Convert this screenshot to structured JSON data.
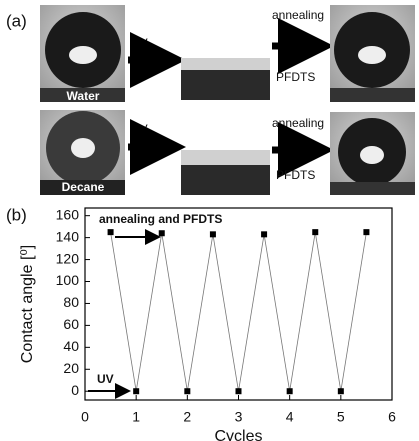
{
  "panel_a": {
    "label": "(a)",
    "row1": {
      "arrow1": "UV",
      "arrow2_top": "annealing",
      "arrow2_bottom": "PFDTS",
      "liquid": "Water"
    },
    "row2": {
      "arrow1": "UV",
      "arrow2_top": "annealing",
      "arrow2_bottom": "PFDTS",
      "liquid": "Decane"
    }
  },
  "chart_data": {
    "type": "line",
    "panel_label": "(b)",
    "xlabel": "Cycles",
    "ylabel": "Contact angle [⁰]",
    "x": [
      0.5,
      1,
      1.5,
      2,
      2.5,
      3,
      3.5,
      4,
      4.5,
      5,
      5.5
    ],
    "series": [
      {
        "color": "#777777",
        "marker_color": "#000000",
        "values": [
          145,
          0,
          144,
          0,
          143,
          0,
          143,
          0,
          145,
          0,
          145
        ]
      }
    ],
    "xlim": [
      0,
      6
    ],
    "xticks": [
      0,
      1,
      2,
      3,
      4,
      5,
      6
    ],
    "ylim": [
      -8,
      167
    ],
    "yticks": [
      0,
      20,
      40,
      60,
      80,
      100,
      120,
      140,
      160
    ],
    "annotations": [
      "annealing and PFDTS",
      "UV"
    ]
  }
}
